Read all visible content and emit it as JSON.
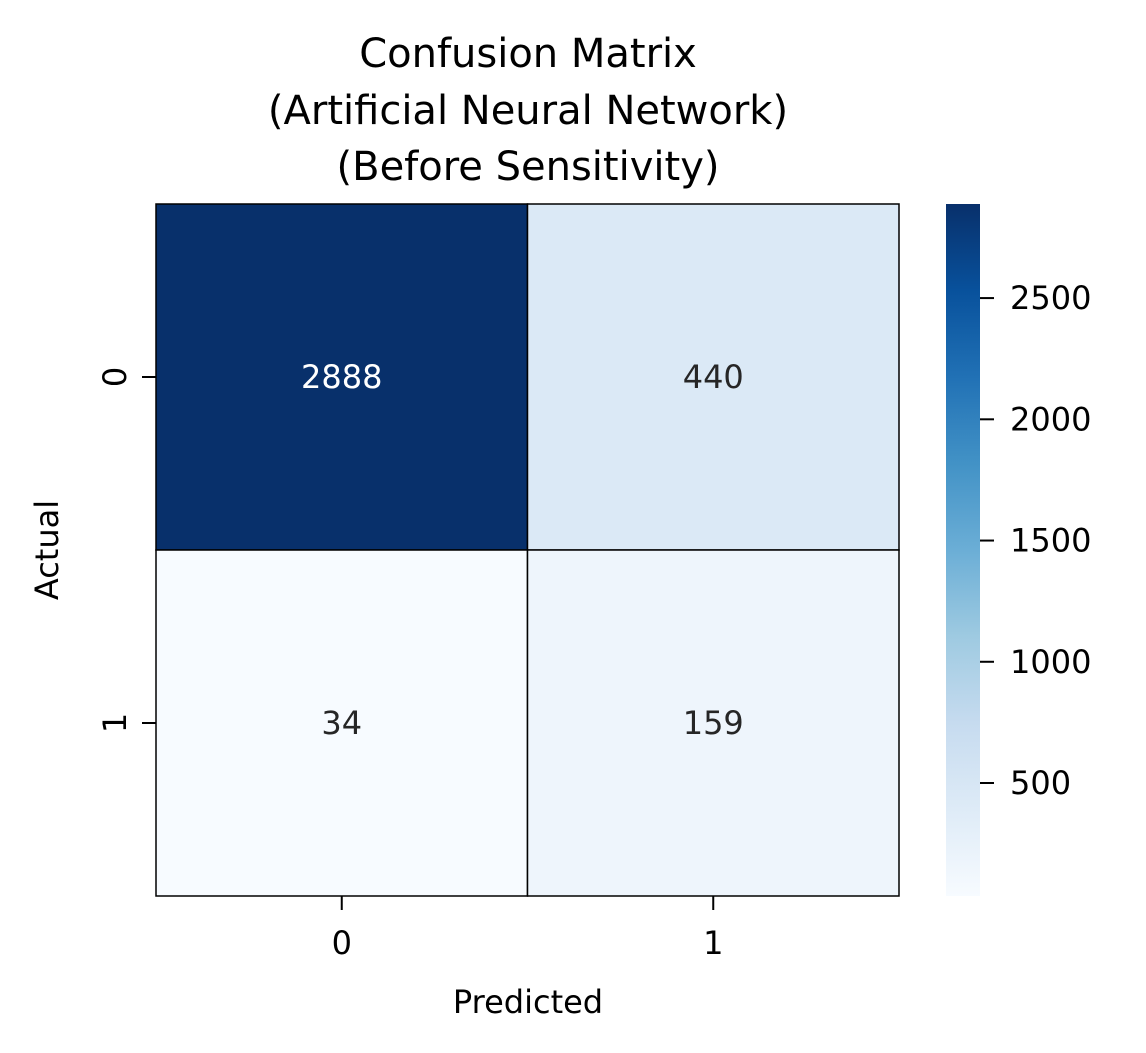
{
  "chart_data": {
    "type": "heatmap",
    "title": [
      "Confusion Matrix",
      "(Artificial Neural Network)",
      "(Before Sensitivity)"
    ],
    "xlabel": "Predicted",
    "ylabel": "Actual",
    "x_categories": [
      "0",
      "1"
    ],
    "y_categories": [
      "0",
      "1"
    ],
    "values": [
      [
        2888,
        440
      ],
      [
        34,
        159
      ]
    ],
    "colormap": "Blues",
    "colorbar": {
      "min": 34,
      "max": 2888,
      "ticks": [
        "500",
        "1000",
        "1500",
        "2000",
        "2500"
      ]
    },
    "grid": false,
    "cell_border_color": "#000000"
  }
}
